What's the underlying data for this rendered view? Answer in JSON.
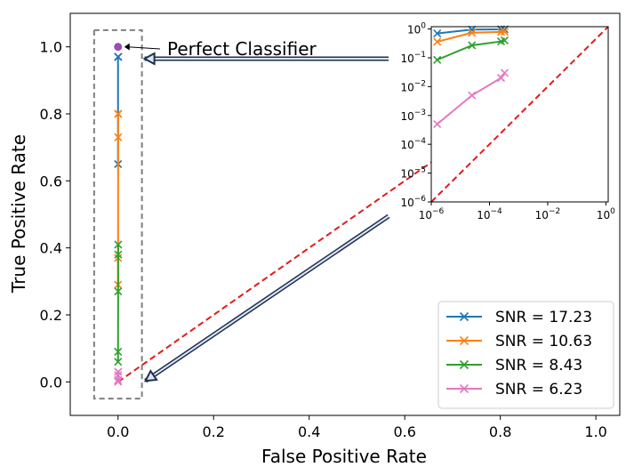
{
  "chart_data": {
    "type": "line",
    "title": "",
    "xlabel": "False Positive Rate",
    "ylabel": "True Positive Rate",
    "xlim": [
      -0.1,
      1.05
    ],
    "ylim": [
      -0.1,
      1.1
    ],
    "xticks": [
      0.0,
      0.2,
      0.4,
      0.6,
      0.8,
      1.0
    ],
    "xtick_labels": [
      "0.0",
      "0.2",
      "0.4",
      "0.6",
      "0.8",
      "1.0"
    ],
    "yticks": [
      0.0,
      0.2,
      0.4,
      0.6,
      0.8,
      1.0
    ],
    "ytick_labels": [
      "0.0",
      "0.2",
      "0.4",
      "0.6",
      "0.8",
      "1.0"
    ],
    "legend_position": "bottom-right",
    "series": [
      {
        "name": "SNR = 17.23",
        "color": "#1f77b4",
        "fpr": [
          0,
          2.5e-06,
          0.00025,
          0.0003,
          0.0003
        ],
        "tpr": [
          0.65,
          0.97,
          0.97,
          0.97,
          0.97
        ]
      },
      {
        "name": "SNR = 10.63",
        "color": "#ff7f0e",
        "fpr": [
          0,
          2.5e-06,
          0.00025,
          0.0003,
          0.0003
        ],
        "tpr": [
          0.29,
          0.37,
          0.73,
          0.8,
          0.8
        ]
      },
      {
        "name": "SNR = 8.43",
        "color": "#2ca02c",
        "fpr": [
          0,
          2.5e-06,
          0.00025,
          0.0003,
          0.0003
        ],
        "tpr": [
          0.06,
          0.09,
          0.27,
          0.38,
          0.41
        ]
      },
      {
        "name": "SNR = 6.23",
        "color": "#e377c2",
        "fpr": [
          0,
          2.5e-06,
          0.00025,
          0.0003,
          0.0003
        ],
        "tpr": [
          0.0005,
          0.005,
          0.02,
          0.03,
          0.03
        ]
      }
    ],
    "chance_line": {
      "color": "#e31a1c",
      "from": [
        0,
        0
      ],
      "to": [
        1,
        1
      ]
    },
    "perfect_point": {
      "x": 0,
      "y": 1,
      "color": "#9b4fb0"
    },
    "annotation": {
      "text": "Perfect Classifier"
    },
    "highlight_box": {
      "x": [
        -0.05,
        0.05
      ],
      "y": [
        -0.05,
        1.05
      ]
    },
    "inset": {
      "xscale": "log",
      "yscale": "log",
      "xlim": [
        1e-06,
        1.2
      ],
      "ylim": [
        1e-06,
        1.2
      ],
      "xticks": [
        1e-06,
        0.0001,
        0.01,
        1
      ],
      "xtick_labels": [
        {
          "base": "10",
          "exp": "−6"
        },
        {
          "base": "10",
          "exp": "−4"
        },
        {
          "base": "10",
          "exp": "−2"
        },
        {
          "base": "10",
          "exp": "0"
        }
      ],
      "yticks": [
        1e-06,
        1e-05,
        0.0001,
        0.001,
        0.01,
        0.1,
        1
      ],
      "ytick_labels": [
        {
          "base": "10",
          "exp": "−6"
        },
        {
          "base": "10",
          "exp": "−5"
        },
        {
          "base": "10",
          "exp": "−4"
        },
        {
          "base": "10",
          "exp": "−3"
        },
        {
          "base": "10",
          "exp": "−2"
        },
        {
          "base": "10",
          "exp": "−1"
        },
        {
          "base": "10",
          "exp": "0"
        }
      ],
      "series": [
        {
          "name": "SNR = 17.23",
          "color": "#1f77b4",
          "x": [
            1.6e-06,
            2.5e-05,
            0.00025,
            0.00033
          ],
          "y": [
            0.7,
            0.95,
            0.97,
            0.97
          ]
        },
        {
          "name": "SNR = 10.63",
          "color": "#ff7f0e",
          "x": [
            1.6e-06,
            2.5e-05,
            0.00025,
            0.00033
          ],
          "y": [
            0.36,
            0.74,
            0.79,
            0.8
          ]
        },
        {
          "name": "SNR = 8.43",
          "color": "#2ca02c",
          "x": [
            1.6e-06,
            2.5e-05,
            0.00025,
            0.00033
          ],
          "y": [
            0.085,
            0.27,
            0.37,
            0.4
          ]
        },
        {
          "name": "SNR = 6.23",
          "color": "#e377c2",
          "x": [
            1.6e-06,
            2.5e-05,
            0.00025,
            0.00033
          ],
          "y": [
            0.0005,
            0.005,
            0.02,
            0.03
          ]
        }
      ]
    }
  }
}
